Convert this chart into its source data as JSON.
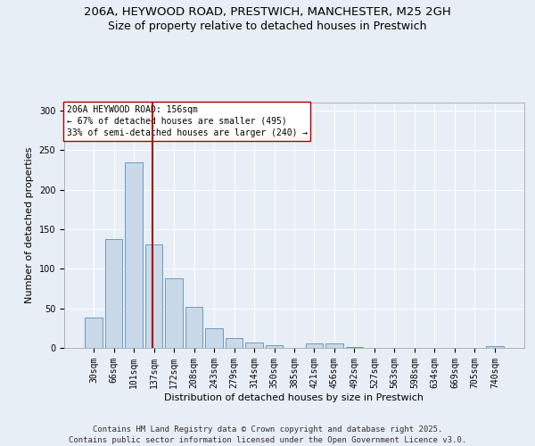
{
  "title_line1": "206A, HEYWOOD ROAD, PRESTWICH, MANCHESTER, M25 2GH",
  "title_line2": "Size of property relative to detached houses in Prestwich",
  "xlabel": "Distribution of detached houses by size in Prestwich",
  "ylabel": "Number of detached properties",
  "categories": [
    "30sqm",
    "66sqm",
    "101sqm",
    "137sqm",
    "172sqm",
    "208sqm",
    "243sqm",
    "279sqm",
    "314sqm",
    "350sqm",
    "385sqm",
    "421sqm",
    "456sqm",
    "492sqm",
    "527sqm",
    "563sqm",
    "598sqm",
    "634sqm",
    "669sqm",
    "705sqm",
    "740sqm"
  ],
  "values": [
    38,
    138,
    235,
    131,
    88,
    52,
    25,
    12,
    7,
    3,
    0,
    6,
    6,
    1,
    0,
    0,
    0,
    0,
    0,
    0,
    2
  ],
  "bar_color": "#c9d9e8",
  "bar_edge_color": "#5a8fc0",
  "vline_x_index": 3,
  "vline_color": "#aa0000",
  "annotation_title": "206A HEYWOOD ROAD: 156sqm",
  "annotation_line2": "← 67% of detached houses are smaller (495)",
  "annotation_line3": "33% of semi-detached houses are larger (240) →",
  "annotation_box_color": "#ffffff",
  "annotation_box_edge": "#aa0000",
  "ylim": [
    0,
    310
  ],
  "yticks": [
    0,
    50,
    100,
    150,
    200,
    250,
    300
  ],
  "footer_line1": "Contains HM Land Registry data © Crown copyright and database right 2025.",
  "footer_line2": "Contains public sector information licensed under the Open Government Licence v3.0.",
  "bg_color": "#e8eef5",
  "plot_bg_color": "#e8eef5",
  "grid_color": "#ffffff",
  "title_fontsize": 9.5,
  "subtitle_fontsize": 9,
  "axis_label_fontsize": 8,
  "tick_fontsize": 7,
  "annotation_fontsize": 7,
  "footer_fontsize": 6.5
}
